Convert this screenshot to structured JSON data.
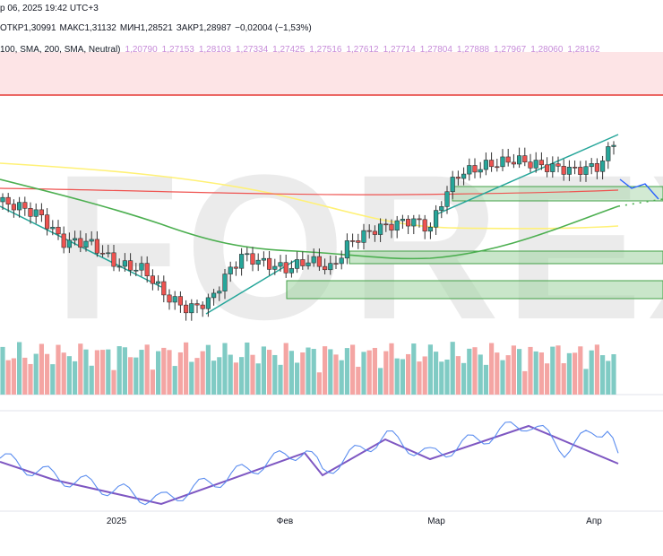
{
  "header": {
    "datetime": "р 06, 2025 19:42 UTC+3",
    "ohlc": [
      "ОТКР1,30991",
      "МАКС1,31132",
      "МИН1,28521",
      "ЗАКР1,28987",
      "−0,02004 (−1,53%)"
    ]
  },
  "indicator": {
    "name": "100, SMA, 200, SMA, Neutral)",
    "values": [
      "1,20790",
      "1,27153",
      "1,28103",
      "1,27334",
      "1,27425",
      "1,27516",
      "1,27612",
      "1,27714",
      "1,27804",
      "1,27888",
      "1,27967",
      "1,28060",
      "1,28162"
    ]
  },
  "watermark": "FOREX",
  "time_axis": [
    "2025",
    "Фев",
    "Мар",
    "Апр"
  ]
}
